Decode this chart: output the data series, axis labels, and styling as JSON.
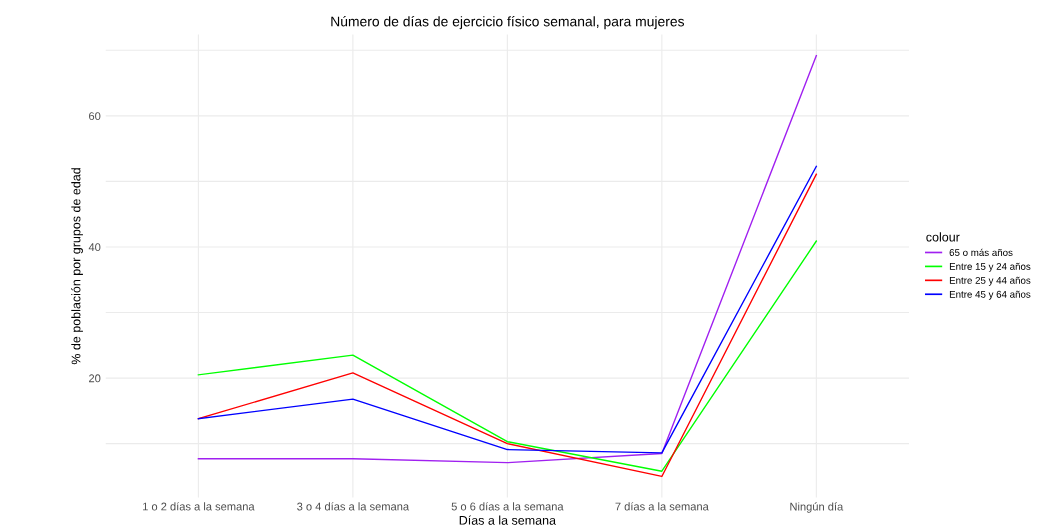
{
  "chart_data": {
    "type": "line",
    "title": "Número de días de ejercicio físico semanal, para mujeres",
    "xlabel": "Días a la semana",
    "ylabel": "% de población por grupos de edad",
    "legend_title": "colour",
    "categories": [
      "1 o 2 días a la semana",
      "3 o 4 días a la semana",
      "5 o 6 días a la semana",
      "7 días a la semana",
      "Ningún día"
    ],
    "series": [
      {
        "name": "65 o más años",
        "color": "#a020f0",
        "values": [
          7.7,
          7.7,
          7.1,
          8.5,
          69.2
        ]
      },
      {
        "name": "Entre 15 y 24 años",
        "color": "#00ff00",
        "values": [
          20.5,
          23.5,
          10.3,
          5.8,
          40.9
        ]
      },
      {
        "name": "Entre 25 y 44 años",
        "color": "#ff0000",
        "values": [
          13.8,
          20.8,
          10.0,
          5.0,
          51.1
        ]
      },
      {
        "name": "Entre 45 y 64 años",
        "color": "#0000ff",
        "values": [
          13.8,
          16.8,
          9.1,
          8.6,
          52.3
        ]
      }
    ],
    "ylim": [
      1.8,
      72.4
    ],
    "yticks": [
      {
        "value": 10,
        "label": null
      },
      20,
      {
        "value": 30,
        "label": null
      },
      40,
      {
        "value": 50,
        "label": null
      },
      60,
      {
        "value": 70,
        "label": null
      }
    ],
    "grid": true,
    "legend": "right",
    "marker": "none",
    "line_style": "solid"
  }
}
